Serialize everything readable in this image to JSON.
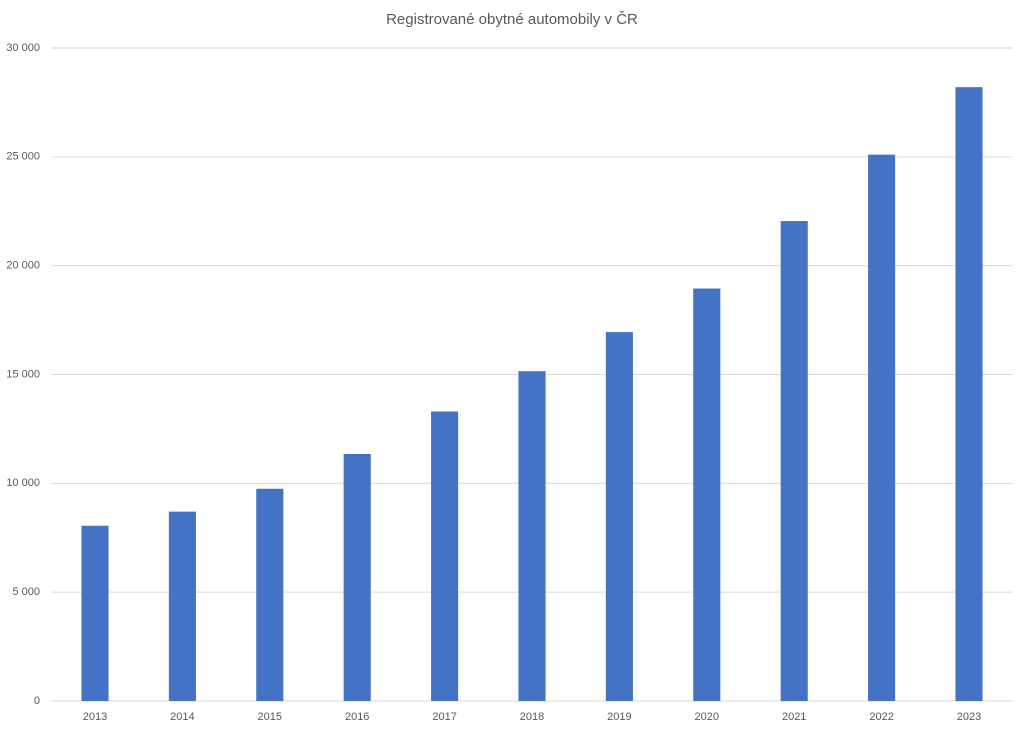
{
  "chart_data": {
    "type": "bar",
    "title": "Registrované obytné automobily  v ČR",
    "categories": [
      "2013",
      "2014",
      "2015",
      "2016",
      "2017",
      "2018",
      "2019",
      "2020",
      "2021",
      "2022",
      "2023"
    ],
    "values": [
      8050,
      8700,
      9750,
      11350,
      13300,
      15150,
      16950,
      18950,
      22050,
      25100,
      28200
    ],
    "color": "#4472c4",
    "ylim": [
      0,
      30000
    ],
    "yticks": [
      0,
      {
        "value": 5000,
        "label": "5 000"
      },
      {
        "value": 10000,
        "label": "10 000"
      },
      {
        "value": 15000,
        "label": "15 000"
      },
      {
        "value": 20000,
        "label": "20 000"
      },
      {
        "value": 25000,
        "label": "25 000"
      },
      {
        "value": 30000,
        "label": "30 000"
      }
    ],
    "grid": true
  }
}
